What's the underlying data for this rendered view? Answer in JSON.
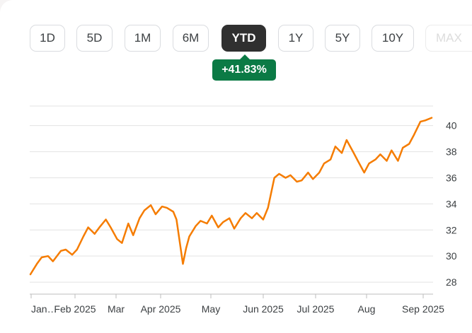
{
  "range_selector": {
    "buttons": [
      {
        "label": "1D",
        "active": false
      },
      {
        "label": "5D",
        "active": false
      },
      {
        "label": "1M",
        "active": false
      },
      {
        "label": "6M",
        "active": false
      },
      {
        "label": "YTD",
        "active": true
      },
      {
        "label": "1Y",
        "active": false
      },
      {
        "label": "5Y",
        "active": false
      },
      {
        "label": "10Y",
        "active": false
      },
      {
        "label": "MAX",
        "active": false
      }
    ]
  },
  "change_badge": {
    "text": "+41.83%",
    "color": "#0b7a45"
  },
  "chart_data": {
    "type": "line",
    "title": "",
    "xlabel": "",
    "ylabel": "",
    "ylim": [
      27.3,
      41.5
    ],
    "y_ticks": [
      28,
      30,
      32,
      34,
      36,
      38,
      40
    ],
    "x_tick_labels": [
      "Jan…",
      "Feb 2025",
      "Mar",
      "Apr 2025",
      "May",
      "Jun 2025",
      "Jul 2025",
      "Aug",
      "Sep 2025"
    ],
    "grid": true,
    "line_color": "#f57c00",
    "series": [
      {
        "name": "",
        "x": [
          "2025-01-02",
          "2025-01-06",
          "2025-01-09",
          "2025-01-13",
          "2025-01-16",
          "2025-01-21",
          "2025-01-24",
          "2025-01-28",
          "2025-01-31",
          "2025-02-04",
          "2025-02-07",
          "2025-02-11",
          "2025-02-14",
          "2025-02-18",
          "2025-02-21",
          "2025-02-25",
          "2025-02-28",
          "2025-03-04",
          "2025-03-07",
          "2025-03-11",
          "2025-03-14",
          "2025-03-18",
          "2025-03-21",
          "2025-03-25",
          "2025-03-28",
          "2025-04-01",
          "2025-04-03",
          "2025-04-07",
          "2025-04-09",
          "2025-04-11",
          "2025-04-15",
          "2025-04-18",
          "2025-04-22",
          "2025-04-25",
          "2025-04-29",
          "2025-05-02",
          "2025-05-06",
          "2025-05-09",
          "2025-05-13",
          "2025-05-16",
          "2025-05-20",
          "2025-05-23",
          "2025-05-27",
          "2025-05-30",
          "2025-06-03",
          "2025-06-06",
          "2025-06-10",
          "2025-06-13",
          "2025-06-17",
          "2025-06-20",
          "2025-06-24",
          "2025-06-27",
          "2025-07-01",
          "2025-07-04",
          "2025-07-08",
          "2025-07-11",
          "2025-07-15",
          "2025-07-18",
          "2025-07-22",
          "2025-07-25",
          "2025-07-29",
          "2025-08-01",
          "2025-08-05",
          "2025-08-08",
          "2025-08-12",
          "2025-08-15",
          "2025-08-19",
          "2025-08-22",
          "2025-08-26",
          "2025-08-29",
          "2025-09-02",
          "2025-09-05",
          "2025-09-09"
        ],
        "values": [
          28.6,
          29.4,
          29.9,
          30.0,
          29.6,
          30.4,
          30.5,
          30.1,
          30.5,
          31.5,
          32.2,
          31.7,
          32.2,
          32.8,
          32.2,
          31.3,
          31.0,
          32.5,
          31.6,
          32.9,
          33.5,
          33.9,
          33.2,
          33.8,
          33.7,
          33.4,
          32.8,
          29.4,
          30.6,
          31.5,
          32.3,
          32.7,
          32.5,
          33.1,
          32.2,
          32.6,
          32.9,
          32.1,
          32.9,
          33.3,
          32.9,
          33.3,
          32.8,
          33.7,
          36.0,
          36.3,
          36.0,
          36.2,
          35.7,
          35.8,
          36.4,
          35.9,
          36.4,
          37.1,
          37.4,
          38.4,
          37.9,
          38.9,
          38.0,
          37.3,
          36.4,
          37.1,
          37.4,
          37.8,
          37.3,
          38.1,
          37.3,
          38.3,
          38.6,
          39.3,
          40.3,
          40.4,
          40.6
        ]
      }
    ]
  }
}
